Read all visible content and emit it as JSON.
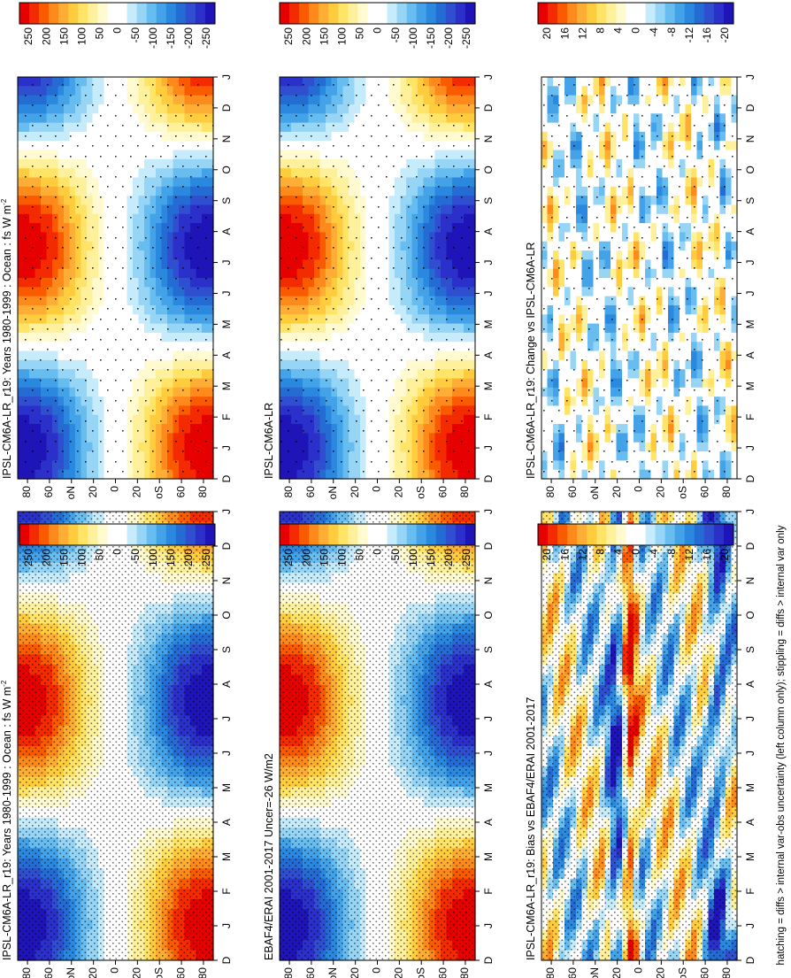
{
  "figure": {
    "footnote": "hatching = diffs > internal var-obs uncertainty (left column only); stippling = diffs > internal var only"
  },
  "chart_data": [
    {
      "type": "heatmap",
      "title": "IPSL-CM6A-LR_r19: Years 1980-1999 : Ocean : fs W m",
      "title_superscript": "-2",
      "x_tick_labels": [
        "D",
        "J",
        "F",
        "M",
        "A",
        "M",
        "J",
        "J",
        "A",
        "S",
        "O",
        "N",
        "D",
        "J"
      ],
      "y_tick_labels": [
        "80",
        "60",
        "N",
        "20",
        "0",
        "20",
        "S",
        "60",
        "80"
      ],
      "y_prefix": "o",
      "colorbar_labels": [
        "250",
        "200",
        "150",
        "100",
        "50",
        "0",
        "-50",
        "-100",
        "-150",
        "-200",
        "-250"
      ],
      "color_range": [
        -250,
        250
      ],
      "stippling": "dense"
    },
    {
      "type": "heatmap",
      "title": "IPSL-CM6A-LR_r19: Years 1980-1999 : Ocean : fs W m",
      "title_superscript": "-2",
      "x_tick_labels": [
        "D",
        "J",
        "F",
        "M",
        "A",
        "M",
        "J",
        "J",
        "A",
        "S",
        "O",
        "N",
        "D",
        "J"
      ],
      "y_tick_labels": [
        "80",
        "60",
        "N",
        "20",
        "0",
        "20",
        "S",
        "60",
        "80"
      ],
      "y_prefix": "o",
      "colorbar_labels": [
        "250",
        "200",
        "150",
        "100",
        "50",
        "0",
        "-50",
        "-100",
        "-150",
        "-200",
        "-250"
      ],
      "color_range": [
        -250,
        250
      ],
      "stippling": "sparse"
    },
    {
      "type": "heatmap",
      "title": "EBAF4/ERAI 2001-2017 Uncer=-26 W/m2",
      "x_tick_labels": [
        "D",
        "J",
        "F",
        "M",
        "A",
        "M",
        "J",
        "J",
        "A",
        "S",
        "O",
        "N",
        "D",
        "J"
      ],
      "y_tick_labels": [
        "80",
        "60",
        "N",
        "20",
        "0",
        "20",
        "S",
        "60",
        "80"
      ],
      "y_prefix": "o",
      "colorbar_labels": [
        "250",
        "200",
        "150",
        "100",
        "50",
        "0",
        "-50",
        "-100",
        "-150",
        "-200",
        "-250"
      ],
      "color_range": [
        -250,
        250
      ],
      "stippling": "dense"
    },
    {
      "type": "heatmap",
      "title": "IPSL-CM6A-LR",
      "x_tick_labels": [
        "D",
        "J",
        "F",
        "M",
        "A",
        "M",
        "J",
        "J",
        "A",
        "S",
        "O",
        "N",
        "D",
        "J"
      ],
      "y_tick_labels": [
        "80",
        "60",
        "N",
        "20",
        "0",
        "20",
        "S",
        "60",
        "80"
      ],
      "y_prefix": "o",
      "colorbar_labels": [
        "250",
        "200",
        "150",
        "100",
        "50",
        "0",
        "-50",
        "-100",
        "-150",
        "-200",
        "-250"
      ],
      "color_range": [
        -250,
        250
      ],
      "stippling": "sparse"
    },
    {
      "type": "heatmap",
      "title": "IPSL-CM6A-LR_r19: Bias vs EBAF4/ERAI 2001-2017",
      "x_tick_labels": [
        "D",
        "J",
        "F",
        "M",
        "A",
        "M",
        "J",
        "J",
        "A",
        "S",
        "O",
        "N",
        "D",
        "J"
      ],
      "y_tick_labels": [
        "80",
        "60",
        "N",
        "20",
        "0",
        "20",
        "S",
        "60",
        "80"
      ],
      "y_prefix": "o",
      "colorbar_labels": [
        "20",
        "16",
        "12",
        "8",
        "4",
        "0",
        "-4",
        "-8",
        "-12",
        "-16",
        "-20"
      ],
      "color_range": [
        -20,
        20
      ],
      "stippling": "dense"
    },
    {
      "type": "heatmap",
      "title": "IPSL-CM6A-LR_r19: Change vs IPSL-CM6A-LR",
      "x_tick_labels": [
        "D",
        "J",
        "F",
        "M",
        "A",
        "M",
        "J",
        "J",
        "A",
        "S",
        "O",
        "N",
        "D",
        "J"
      ],
      "y_tick_labels": [
        "80",
        "60",
        "N",
        "20",
        "0",
        "20",
        "S",
        "60",
        "80"
      ],
      "y_prefix": "o",
      "colorbar_labels": [
        "20",
        "16",
        "12",
        "8",
        "4",
        "0",
        "-4",
        "-8",
        "-12",
        "-16",
        "-20"
      ],
      "color_range": [
        -20,
        20
      ],
      "stippling": "sparse"
    }
  ]
}
